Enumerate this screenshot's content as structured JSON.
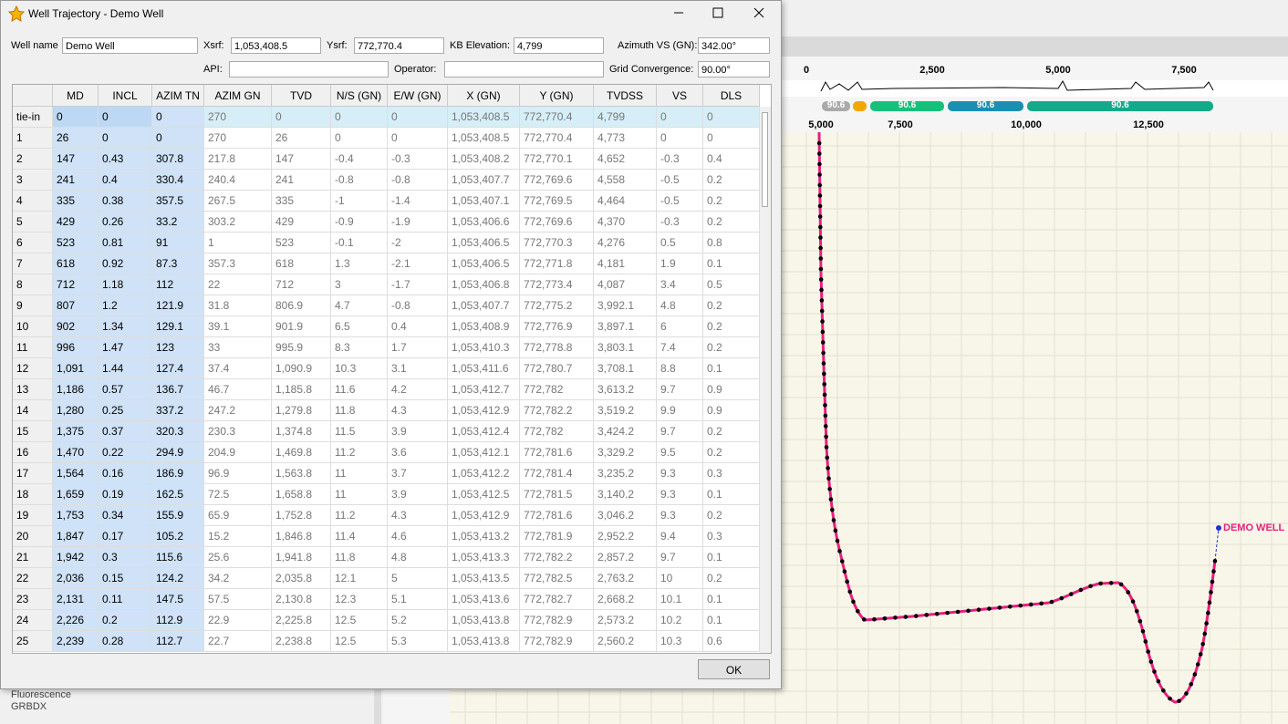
{
  "app": {
    "top_axis_ticks": [
      "0",
      "2,500",
      "5,000",
      "7,500"
    ],
    "lower_axis_ticks": [
      "5,000",
      "7,500",
      "10,000",
      "12,500"
    ],
    "pills": [
      "90.6",
      "90.6",
      "90.6",
      "90.6"
    ],
    "well_label": "DEMO WELL",
    "side_items": [
      "Fluorescence",
      "GRBDX"
    ]
  },
  "dialog": {
    "title": "Well Trajectory - Demo Well",
    "fields": [
      {
        "label": "Well name",
        "value": "Demo Well"
      },
      {
        "label": "Xsrf:",
        "value": "1,053,408.5"
      },
      {
        "label": "Ysrf:",
        "value": "772,770.4"
      },
      {
        "label": "KB Elevation:",
        "value": "4,799"
      },
      {
        "label": "Azimuth VS (GN):",
        "value": "342.00°"
      },
      {
        "label": "API:",
        "value": ""
      },
      {
        "label": "Operator:",
        "value": ""
      },
      {
        "label": "Grid Convergence:",
        "value": "90.00°"
      }
    ],
    "table": {
      "columns": [
        "MD",
        "INCL",
        "AZIM TN",
        "AZIM GN",
        "TVD",
        "N/S (GN)",
        "E/W (GN)",
        "X (GN)",
        "Y (GN)",
        "TVDSS",
        "VS",
        "DLS"
      ],
      "rows": [
        [
          "tie-in",
          "0",
          "0",
          "0",
          "270",
          "0",
          "0",
          "0",
          "1,053,408.5",
          "772,770.4",
          "4,799",
          "0",
          "0"
        ],
        [
          "1",
          "26",
          "0",
          "0",
          "270",
          "26",
          "0",
          "0",
          "1,053,408.5",
          "772,770.4",
          "4,773",
          "0",
          "0"
        ],
        [
          "2",
          "147",
          "0.43",
          "307.8",
          "217.8",
          "147",
          "-0.4",
          "-0.3",
          "1,053,408.2",
          "772,770.1",
          "4,652",
          "-0.3",
          "0.4"
        ],
        [
          "3",
          "241",
          "0.4",
          "330.4",
          "240.4",
          "241",
          "-0.8",
          "-0.8",
          "1,053,407.7",
          "772,769.6",
          "4,558",
          "-0.5",
          "0.2"
        ],
        [
          "4",
          "335",
          "0.38",
          "357.5",
          "267.5",
          "335",
          "-1",
          "-1.4",
          "1,053,407.1",
          "772,769.5",
          "4,464",
          "-0.5",
          "0.2"
        ],
        [
          "5",
          "429",
          "0.26",
          "33.2",
          "303.2",
          "429",
          "-0.9",
          "-1.9",
          "1,053,406.6",
          "772,769.6",
          "4,370",
          "-0.3",
          "0.2"
        ],
        [
          "6",
          "523",
          "0.81",
          "91",
          "1",
          "523",
          "-0.1",
          "-2",
          "1,053,406.5",
          "772,770.3",
          "4,276",
          "0.5",
          "0.8"
        ],
        [
          "7",
          "618",
          "0.92",
          "87.3",
          "357.3",
          "618",
          "1.3",
          "-2.1",
          "1,053,406.5",
          "772,771.8",
          "4,181",
          "1.9",
          "0.1"
        ],
        [
          "8",
          "712",
          "1.18",
          "112",
          "22",
          "712",
          "3",
          "-1.7",
          "1,053,406.8",
          "772,773.4",
          "4,087",
          "3.4",
          "0.5"
        ],
        [
          "9",
          "807",
          "1.2",
          "121.9",
          "31.8",
          "806.9",
          "4.7",
          "-0.8",
          "1,053,407.7",
          "772,775.2",
          "3,992.1",
          "4.8",
          "0.2"
        ],
        [
          "10",
          "902",
          "1.34",
          "129.1",
          "39.1",
          "901.9",
          "6.5",
          "0.4",
          "1,053,408.9",
          "772,776.9",
          "3,897.1",
          "6",
          "0.2"
        ],
        [
          "11",
          "996",
          "1.47",
          "123",
          "33",
          "995.9",
          "8.3",
          "1.7",
          "1,053,410.3",
          "772,778.8",
          "3,803.1",
          "7.4",
          "0.2"
        ],
        [
          "12",
          "1,091",
          "1.44",
          "127.4",
          "37.4",
          "1,090.9",
          "10.3",
          "3.1",
          "1,053,411.6",
          "772,780.7",
          "3,708.1",
          "8.8",
          "0.1"
        ],
        [
          "13",
          "1,186",
          "0.57",
          "136.7",
          "46.7",
          "1,185.8",
          "11.6",
          "4.2",
          "1,053,412.7",
          "772,782",
          "3,613.2",
          "9.7",
          "0.9"
        ],
        [
          "14",
          "1,280",
          "0.25",
          "337.2",
          "247.2",
          "1,279.8",
          "11.8",
          "4.3",
          "1,053,412.9",
          "772,782.2",
          "3,519.2",
          "9.9",
          "0.9"
        ],
        [
          "15",
          "1,375",
          "0.37",
          "320.3",
          "230.3",
          "1,374.8",
          "11.5",
          "3.9",
          "1,053,412.4",
          "772,782",
          "3,424.2",
          "9.7",
          "0.2"
        ],
        [
          "16",
          "1,470",
          "0.22",
          "294.9",
          "204.9",
          "1,469.8",
          "11.2",
          "3.6",
          "1,053,412.1",
          "772,781.6",
          "3,329.2",
          "9.5",
          "0.2"
        ],
        [
          "17",
          "1,564",
          "0.16",
          "186.9",
          "96.9",
          "1,563.8",
          "11",
          "3.7",
          "1,053,412.2",
          "772,781.4",
          "3,235.2",
          "9.3",
          "0.3"
        ],
        [
          "18",
          "1,659",
          "0.19",
          "162.5",
          "72.5",
          "1,658.8",
          "11",
          "3.9",
          "1,053,412.5",
          "772,781.5",
          "3,140.2",
          "9.3",
          "0.1"
        ],
        [
          "19",
          "1,753",
          "0.34",
          "155.9",
          "65.9",
          "1,752.8",
          "11.2",
          "4.3",
          "1,053,412.9",
          "772,781.6",
          "3,046.2",
          "9.3",
          "0.2"
        ],
        [
          "20",
          "1,847",
          "0.17",
          "105.2",
          "15.2",
          "1,846.8",
          "11.4",
          "4.6",
          "1,053,413.2",
          "772,781.9",
          "2,952.2",
          "9.4",
          "0.3"
        ],
        [
          "21",
          "1,942",
          "0.3",
          "115.6",
          "25.6",
          "1,941.8",
          "11.8",
          "4.8",
          "1,053,413.3",
          "772,782.2",
          "2,857.2",
          "9.7",
          "0.1"
        ],
        [
          "22",
          "2,036",
          "0.15",
          "124.2",
          "34.2",
          "2,035.8",
          "12.1",
          "5",
          "1,053,413.5",
          "772,782.5",
          "2,763.2",
          "10",
          "0.2"
        ],
        [
          "23",
          "2,131",
          "0.11",
          "147.5",
          "57.5",
          "2,130.8",
          "12.3",
          "5.1",
          "1,053,413.6",
          "772,782.7",
          "2,668.2",
          "10.1",
          "0.1"
        ],
        [
          "24",
          "2,226",
          "0.2",
          "112.9",
          "22.9",
          "2,225.8",
          "12.5",
          "5.2",
          "1,053,413.8",
          "772,782.9",
          "2,573.2",
          "10.2",
          "0.1"
        ],
        [
          "25",
          "2,239",
          "0.28",
          "112.7",
          "22.7",
          "2,238.8",
          "12.5",
          "5.3",
          "1,053,413.8",
          "772,782.9",
          "2,560.2",
          "10.3",
          "0.6"
        ]
      ]
    },
    "ok": "OK"
  }
}
